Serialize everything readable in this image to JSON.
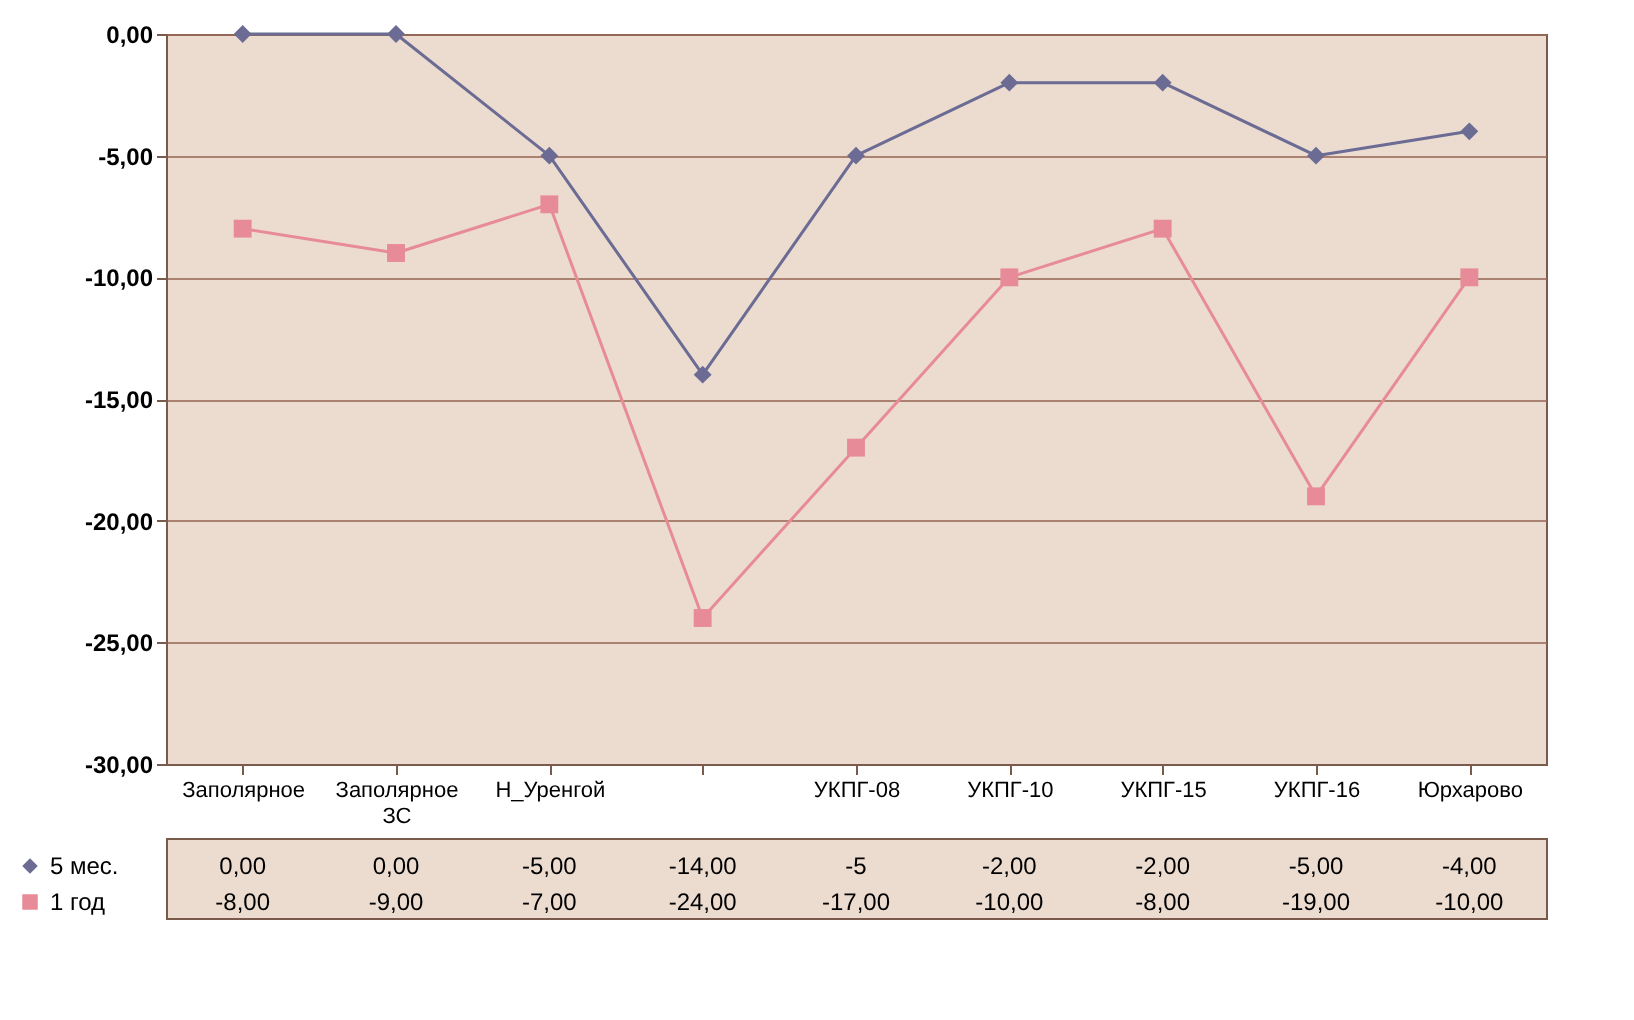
{
  "chart_data": {
    "type": "line",
    "categories": [
      "Заполярное",
      "Заполярное ЗС",
      "Н_Уренгой",
      null,
      "УКПГ-08",
      "УКПГ-10",
      "УКПГ-15",
      "УКПГ-16",
      "Юрхарово"
    ],
    "series": [
      {
        "name": "5 мес.",
        "color": "#6b6b94",
        "marker": "diamond",
        "values": [
          0,
          0,
          -5,
          -14,
          -5,
          -2,
          -2,
          -5,
          -4
        ],
        "value_labels": [
          "0,00",
          "0,00",
          "-5,00",
          "-14,00",
          "-5",
          "-2,00",
          "-2,00",
          "-5,00",
          "-4,00"
        ]
      },
      {
        "name": "1 год",
        "color": "#e88b98",
        "marker": "square",
        "values": [
          -8,
          -9,
          -7,
          -24,
          -17,
          -10,
          -8,
          -19,
          -10
        ],
        "value_labels": [
          "-8,00",
          "-9,00",
          "-7,00",
          "-24,00",
          "-17,00",
          "-10,00",
          "-8,00",
          "-19,00",
          "-10,00"
        ]
      }
    ],
    "ylim": [
      -30,
      0
    ],
    "yticks": [
      {
        "value": 0,
        "label": "0,00"
      },
      {
        "value": -5,
        "label": "-5,00"
      },
      {
        "value": -10,
        "label": "-10,00"
      },
      {
        "value": -15,
        "label": "-15,00"
      },
      {
        "value": -20,
        "label": "-20,00"
      },
      {
        "value": -25,
        "label": "-25,00"
      },
      {
        "value": -30,
        "label": "-30,00"
      }
    ],
    "grid": "y",
    "legend": "bottom left",
    "line_style": "solid"
  }
}
